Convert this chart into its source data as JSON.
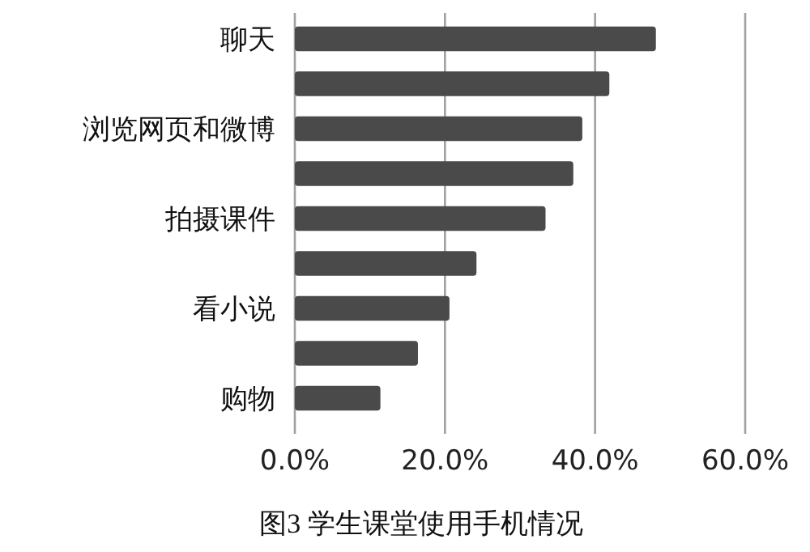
{
  "chart_data": {
    "type": "bar",
    "orientation": "horizontal",
    "title": "图3 学生课堂使用手机情况",
    "categories": [
      "聊天",
      null,
      "浏览网页和微博",
      null,
      "拍摄课件",
      null,
      "看小说",
      null,
      "购物"
    ],
    "values": [
      48.1,
      41.9,
      38.3,
      37.1,
      33.4,
      24.2,
      20.6,
      16.4,
      11.4
    ],
    "color": "#4a4a4a",
    "xlim": [
      0,
      60
    ],
    "xticks": [
      {
        "value": 0,
        "label": "0.0%"
      },
      {
        "value": 20,
        "label": "20.0%"
      },
      {
        "value": 40,
        "label": "40.0%"
      },
      {
        "value": 60,
        "label": "60.0%"
      }
    ],
    "grid": "x"
  }
}
